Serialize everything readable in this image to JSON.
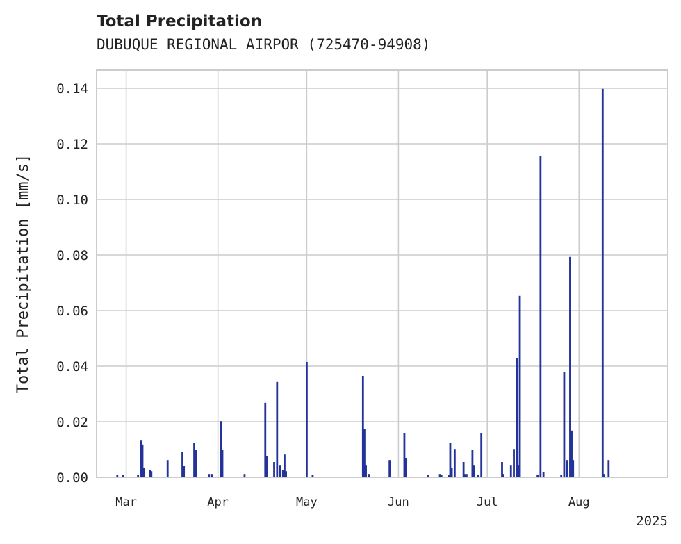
{
  "chart_data": {
    "type": "bar",
    "title": "Total Precipitation",
    "subtitle": "DUBUQUE REGIONAL AIRPOR (725470-94908)",
    "ylabel": "Total Precipitation [mm/s]",
    "xlabel": "",
    "year_label": "2025",
    "color": "#23339a",
    "grid": true,
    "ylim": [
      0,
      0.1465
    ],
    "xlim": [
      "2025-02-19",
      "2025-08-31"
    ],
    "yticks": [
      0.0,
      0.02,
      0.04,
      0.06,
      0.08,
      0.1,
      0.12,
      0.14
    ],
    "ytick_labels": [
      "0.00",
      "0.02",
      "0.04",
      "0.06",
      "0.08",
      "0.10",
      "0.12",
      "0.14"
    ],
    "xticks": [
      {
        "date": "2025-03-01",
        "label": "Mar"
      },
      {
        "date": "2025-04-01",
        "label": "Apr"
      },
      {
        "date": "2025-05-01",
        "label": "May"
      },
      {
        "date": "2025-06-01",
        "label": "Jun"
      },
      {
        "date": "2025-07-01",
        "label": "Jul"
      },
      {
        "date": "2025-08-01",
        "label": "Aug"
      }
    ],
    "bars": [
      {
        "date": "2025-02-26",
        "value": 0.0008
      },
      {
        "date": "2025-02-28",
        "value": 0.0008
      },
      {
        "date": "2025-03-05",
        "value": 0.0008
      },
      {
        "date": "2025-03-06",
        "value": 0.0132
      },
      {
        "date": "2025-03-06T12",
        "value": 0.0118
      },
      {
        "date": "2025-03-07",
        "value": 0.0035
      },
      {
        "date": "2025-03-09",
        "value": 0.0025
      },
      {
        "date": "2025-03-09T12",
        "value": 0.0022
      },
      {
        "date": "2025-03-15",
        "value": 0.0062
      },
      {
        "date": "2025-03-20",
        "value": 0.009
      },
      {
        "date": "2025-03-20T12",
        "value": 0.004
      },
      {
        "date": "2025-03-24",
        "value": 0.0125
      },
      {
        "date": "2025-03-24T12",
        "value": 0.0098
      },
      {
        "date": "2025-03-29",
        "value": 0.0012
      },
      {
        "date": "2025-03-30",
        "value": 0.0012
      },
      {
        "date": "2025-04-02",
        "value": 0.0202
      },
      {
        "date": "2025-04-02T12",
        "value": 0.0098
      },
      {
        "date": "2025-04-10",
        "value": 0.0012
      },
      {
        "date": "2025-04-17",
        "value": 0.0268
      },
      {
        "date": "2025-04-17T12",
        "value": 0.0075
      },
      {
        "date": "2025-04-20",
        "value": 0.0055
      },
      {
        "date": "2025-04-21",
        "value": 0.0343
      },
      {
        "date": "2025-04-22",
        "value": 0.0042
      },
      {
        "date": "2025-04-23",
        "value": 0.0025
      },
      {
        "date": "2025-04-23T12",
        "value": 0.0082
      },
      {
        "date": "2025-04-24",
        "value": 0.0022
      },
      {
        "date": "2025-05-01",
        "value": 0.0415
      },
      {
        "date": "2025-05-03",
        "value": 0.0008
      },
      {
        "date": "2025-05-20",
        "value": 0.0365
      },
      {
        "date": "2025-05-20T12",
        "value": 0.0175
      },
      {
        "date": "2025-05-21",
        "value": 0.0042
      },
      {
        "date": "2025-05-22",
        "value": 0.0012
      },
      {
        "date": "2025-05-29",
        "value": 0.0062
      },
      {
        "date": "2025-06-03",
        "value": 0.016
      },
      {
        "date": "2025-06-03T12",
        "value": 0.007
      },
      {
        "date": "2025-06-11",
        "value": 0.0008
      },
      {
        "date": "2025-06-15",
        "value": 0.0012
      },
      {
        "date": "2025-06-15T12",
        "value": 0.0008
      },
      {
        "date": "2025-06-18",
        "value": 0.0008
      },
      {
        "date": "2025-06-18T12",
        "value": 0.0125
      },
      {
        "date": "2025-06-19",
        "value": 0.0035
      },
      {
        "date": "2025-06-20",
        "value": 0.0102
      },
      {
        "date": "2025-06-23",
        "value": 0.0055
      },
      {
        "date": "2025-06-23T12",
        "value": 0.0012
      },
      {
        "date": "2025-06-24",
        "value": 0.0012
      },
      {
        "date": "2025-06-26",
        "value": 0.0098
      },
      {
        "date": "2025-06-26T12",
        "value": 0.0042
      },
      {
        "date": "2025-06-28",
        "value": 0.0008
      },
      {
        "date": "2025-06-29",
        "value": 0.016
      },
      {
        "date": "2025-07-06",
        "value": 0.0055
      },
      {
        "date": "2025-07-06T12",
        "value": 0.0012
      },
      {
        "date": "2025-07-09",
        "value": 0.0042
      },
      {
        "date": "2025-07-10",
        "value": 0.0102
      },
      {
        "date": "2025-07-11",
        "value": 0.0428
      },
      {
        "date": "2025-07-11T12",
        "value": 0.0042
      },
      {
        "date": "2025-07-12",
        "value": 0.0653
      },
      {
        "date": "2025-07-19",
        "value": 0.1155
      },
      {
        "date": "2025-07-20",
        "value": 0.0018
      },
      {
        "date": "2025-07-18",
        "value": 0.0008
      },
      {
        "date": "2025-07-27",
        "value": 0.0378
      },
      {
        "date": "2025-07-28",
        "value": 0.0062
      },
      {
        "date": "2025-07-29",
        "value": 0.0793
      },
      {
        "date": "2025-07-29T12",
        "value": 0.0168
      },
      {
        "date": "2025-07-30",
        "value": 0.0062
      },
      {
        "date": "2025-07-26",
        "value": 0.0008
      },
      {
        "date": "2025-08-09",
        "value": 0.1398
      },
      {
        "date": "2025-08-09T12",
        "value": 0.0012
      },
      {
        "date": "2025-08-11",
        "value": 0.0062
      }
    ]
  }
}
